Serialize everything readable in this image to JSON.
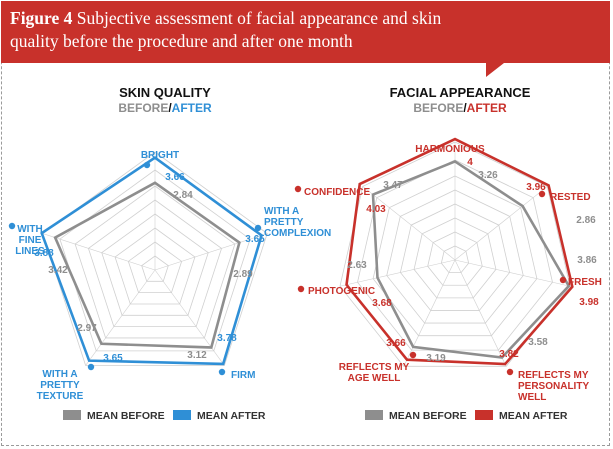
{
  "header": {
    "figure_label": "Figure 4",
    "caption": "Subjective assessment of facial appearance and skin quality before the procedure and after one month"
  },
  "colors": {
    "header_red": "#c8312b",
    "before_grey": "#8e8e8e",
    "after_blue": "#2f8fd6",
    "after_red": "#c8312b",
    "grid": "#d0d0d0"
  },
  "chart_data": [
    {
      "type": "radar",
      "title": "SKIN QUALITY",
      "subtitle_before": "BEFORE",
      "subtitle_sep": "/",
      "subtitle_after": "AFTER",
      "axes": [
        {
          "label_lines": [
            "BRIGHT"
          ]
        },
        {
          "label_lines": [
            "WITH A",
            "PRETTY",
            "COMPLEXION"
          ]
        },
        {
          "label_lines": [
            "FIRM"
          ]
        },
        {
          "label_lines": [
            "WITH A",
            "PRETTY",
            "TEXTURE"
          ]
        },
        {
          "label_lines": [
            "WITH",
            "FINE",
            "LINES"
          ]
        }
      ],
      "series": [
        {
          "name": "MEAN BEFORE",
          "values": [
            2.84,
            2.89,
            3.12,
            2.97,
            3.42
          ],
          "labels": [
            "2.84",
            "2.89",
            "3.12",
            "2.97",
            "3.42"
          ]
        },
        {
          "name": "MEAN AFTER",
          "values": [
            3.66,
            3.65,
            3.78,
            3.65,
            3.88
          ],
          "labels": [
            "3.66",
            "3.65",
            "3.78",
            "3.65",
            "3.88"
          ]
        }
      ],
      "rmax": 4.3,
      "legend": [
        "MEAN BEFORE",
        "MEAN AFTER"
      ],
      "legend_position": "bottom"
    },
    {
      "type": "radar",
      "title": "FACIAL APPEARANCE",
      "subtitle_before": "BEFORE",
      "subtitle_sep": "/",
      "subtitle_after": "AFTER",
      "axes": [
        {
          "label_lines": [
            "HARMONIOUS"
          ]
        },
        {
          "label_lines": [
            "RESTED"
          ]
        },
        {
          "label_lines": [
            "FRESH"
          ]
        },
        {
          "label_lines": [
            "REFLECTS MY",
            "PERSONALITY",
            "WELL"
          ]
        },
        {
          "label_lines": [
            "REFLECTS MY",
            "AGE WELL"
          ]
        },
        {
          "label_lines": [
            "PHOTOGENIC"
          ]
        },
        {
          "label_lines": [
            "CONFIDENCE"
          ]
        }
      ],
      "series": [
        {
          "name": "MEAN BEFORE",
          "values": [
            3.26,
            2.86,
            3.86,
            3.58,
            3.19,
            2.63,
            3.47
          ],
          "labels": [
            "3.26",
            "2.86",
            "3.86",
            "3.58",
            "3.19",
            "2.63",
            "3.47"
          ]
        },
        {
          "name": "MEAN AFTER",
          "values": [
            4,
            3.96,
            3.98,
            3.82,
            3.66,
            3.68,
            4.03
          ],
          "labels": [
            "4",
            "3.96",
            "3.98",
            "3.82",
            "3.66",
            "3.68",
            "4.03"
          ]
        }
      ],
      "rmax": 4.3,
      "legend": [
        "MEAN BEFORE",
        "MEAN AFTER"
      ],
      "legend_position": "bottom"
    }
  ]
}
